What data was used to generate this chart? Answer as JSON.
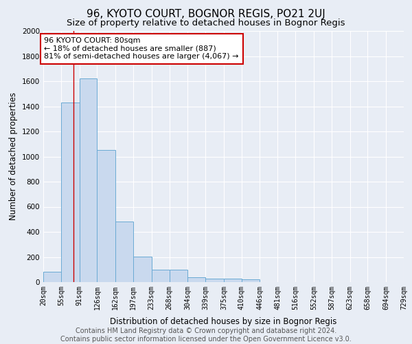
{
  "title": "96, KYOTO COURT, BOGNOR REGIS, PO21 2UJ",
  "subtitle": "Size of property relative to detached houses in Bognor Regis",
  "xlabel": "Distribution of detached houses by size in Bognor Regis",
  "ylabel": "Number of detached properties",
  "footer_line1": "Contains HM Land Registry data © Crown copyright and database right 2024.",
  "footer_line2": "Contains public sector information licensed under the Open Government Licence v3.0.",
  "bin_edges": [
    20,
    55,
    91,
    126,
    162,
    197,
    233,
    268,
    304,
    339,
    375,
    410,
    446,
    481,
    516,
    552,
    587,
    623,
    658,
    694,
    729
  ],
  "bar_heights": [
    80,
    1430,
    1620,
    1050,
    480,
    205,
    100,
    100,
    40,
    30,
    25,
    20,
    0,
    0,
    0,
    0,
    0,
    0,
    0,
    0
  ],
  "bar_color": "#c9d9ee",
  "bar_edge_color": "#6aaad4",
  "background_color": "#e8edf5",
  "property_size": 80,
  "annotation_line1": "96 KYOTO COURT: 80sqm",
  "annotation_line2": "← 18% of detached houses are smaller (887)",
  "annotation_line3": "81% of semi-detached houses are larger (4,067) →",
  "annotation_box_color": "#ffffff",
  "annotation_box_edge_color": "#cc0000",
  "vline_color": "#cc0000",
  "ylim": [
    0,
    2000
  ],
  "yticks": [
    0,
    200,
    400,
    600,
    800,
    1000,
    1200,
    1400,
    1600,
    1800,
    2000
  ],
  "title_fontsize": 11,
  "subtitle_fontsize": 9.5,
  "tick_label_fontsize": 7,
  "ylabel_fontsize": 8.5,
  "xlabel_fontsize": 8.5,
  "annotation_fontsize": 8,
  "footer_fontsize": 7
}
